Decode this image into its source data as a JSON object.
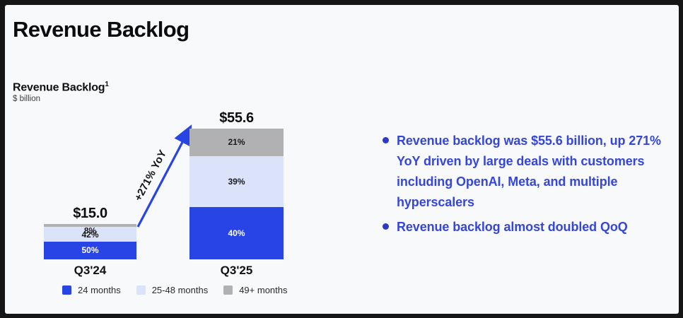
{
  "header": {
    "title": "Revenue Backlog"
  },
  "chart_data": {
    "type": "bar",
    "stacked": true,
    "title": "Revenue Backlog",
    "footnote_marker": "1",
    "unit": "$ billion",
    "categories": [
      "Q3'24",
      "Q3'25"
    ],
    "totals_display": [
      "$15.0",
      "$55.6"
    ],
    "totals_billion": [
      15.0,
      55.6
    ],
    "value_suffix": "%",
    "series": [
      {
        "name": "24 months",
        "color": "#2944e4",
        "label_color": "#ffffff",
        "pct": [
          50,
          40
        ]
      },
      {
        "name": "25-48 months",
        "color": "#dbe3fa",
        "label_color": "#1a1a1c",
        "pct": [
          42,
          39
        ]
      },
      {
        "name": "49+ months",
        "color": "#b1b1b3",
        "label_color": "#1a1a1c",
        "pct": [
          8,
          21
        ]
      }
    ],
    "annotation_label": "+271% YoY",
    "legend_position": "bottom",
    "accent_color": "#2944e4",
    "background_color": "#f8f9fa"
  },
  "bullets": [
    "Revenue backlog was $55.6 billion, up 271% YoY driven by large deals with customers including OpenAI, Meta, and multiple hyperscalers",
    "Revenue backlog almost doubled QoQ"
  ]
}
